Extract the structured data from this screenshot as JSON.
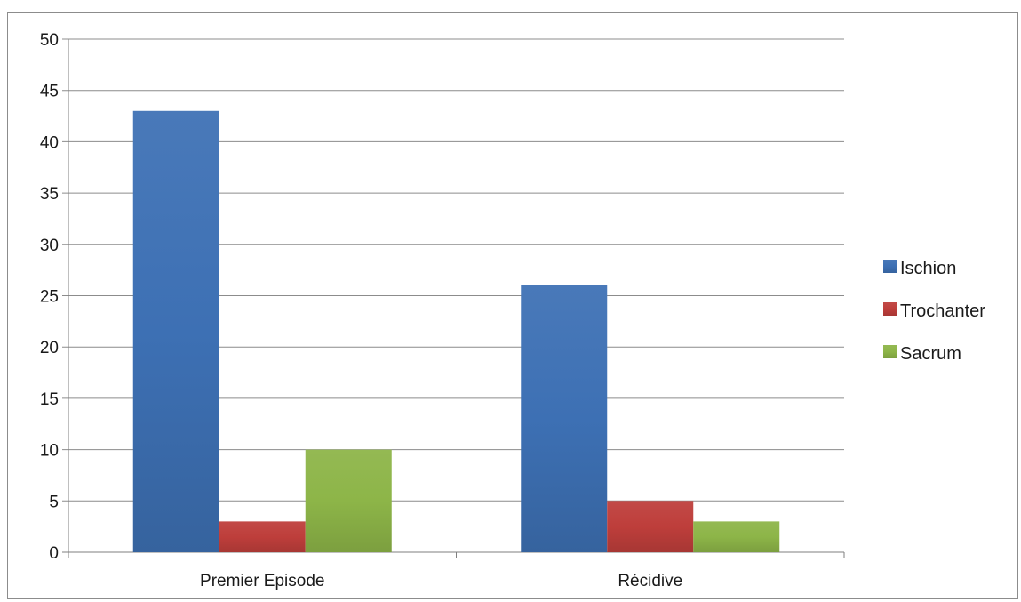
{
  "chart_data": {
    "type": "bar",
    "title": "",
    "xlabel": "",
    "ylabel": "",
    "categories": [
      "Premier Episode",
      "Récidive"
    ],
    "series": [
      {
        "name": "Ischion",
        "values": [
          43,
          26
        ],
        "color": "#3d70b4"
      },
      {
        "name": "Trochanter",
        "values": [
          3,
          5
        ],
        "color": "#be3e3b"
      },
      {
        "name": "Sacrum",
        "values": [
          10,
          3
        ],
        "color": "#8db548"
      }
    ],
    "ylim": [
      0,
      50
    ],
    "yticks": [
      "0",
      "5",
      "10",
      "15",
      "20",
      "25",
      "30",
      "35",
      "40",
      "45",
      "50"
    ],
    "grid": true,
    "legend_position": "right"
  }
}
